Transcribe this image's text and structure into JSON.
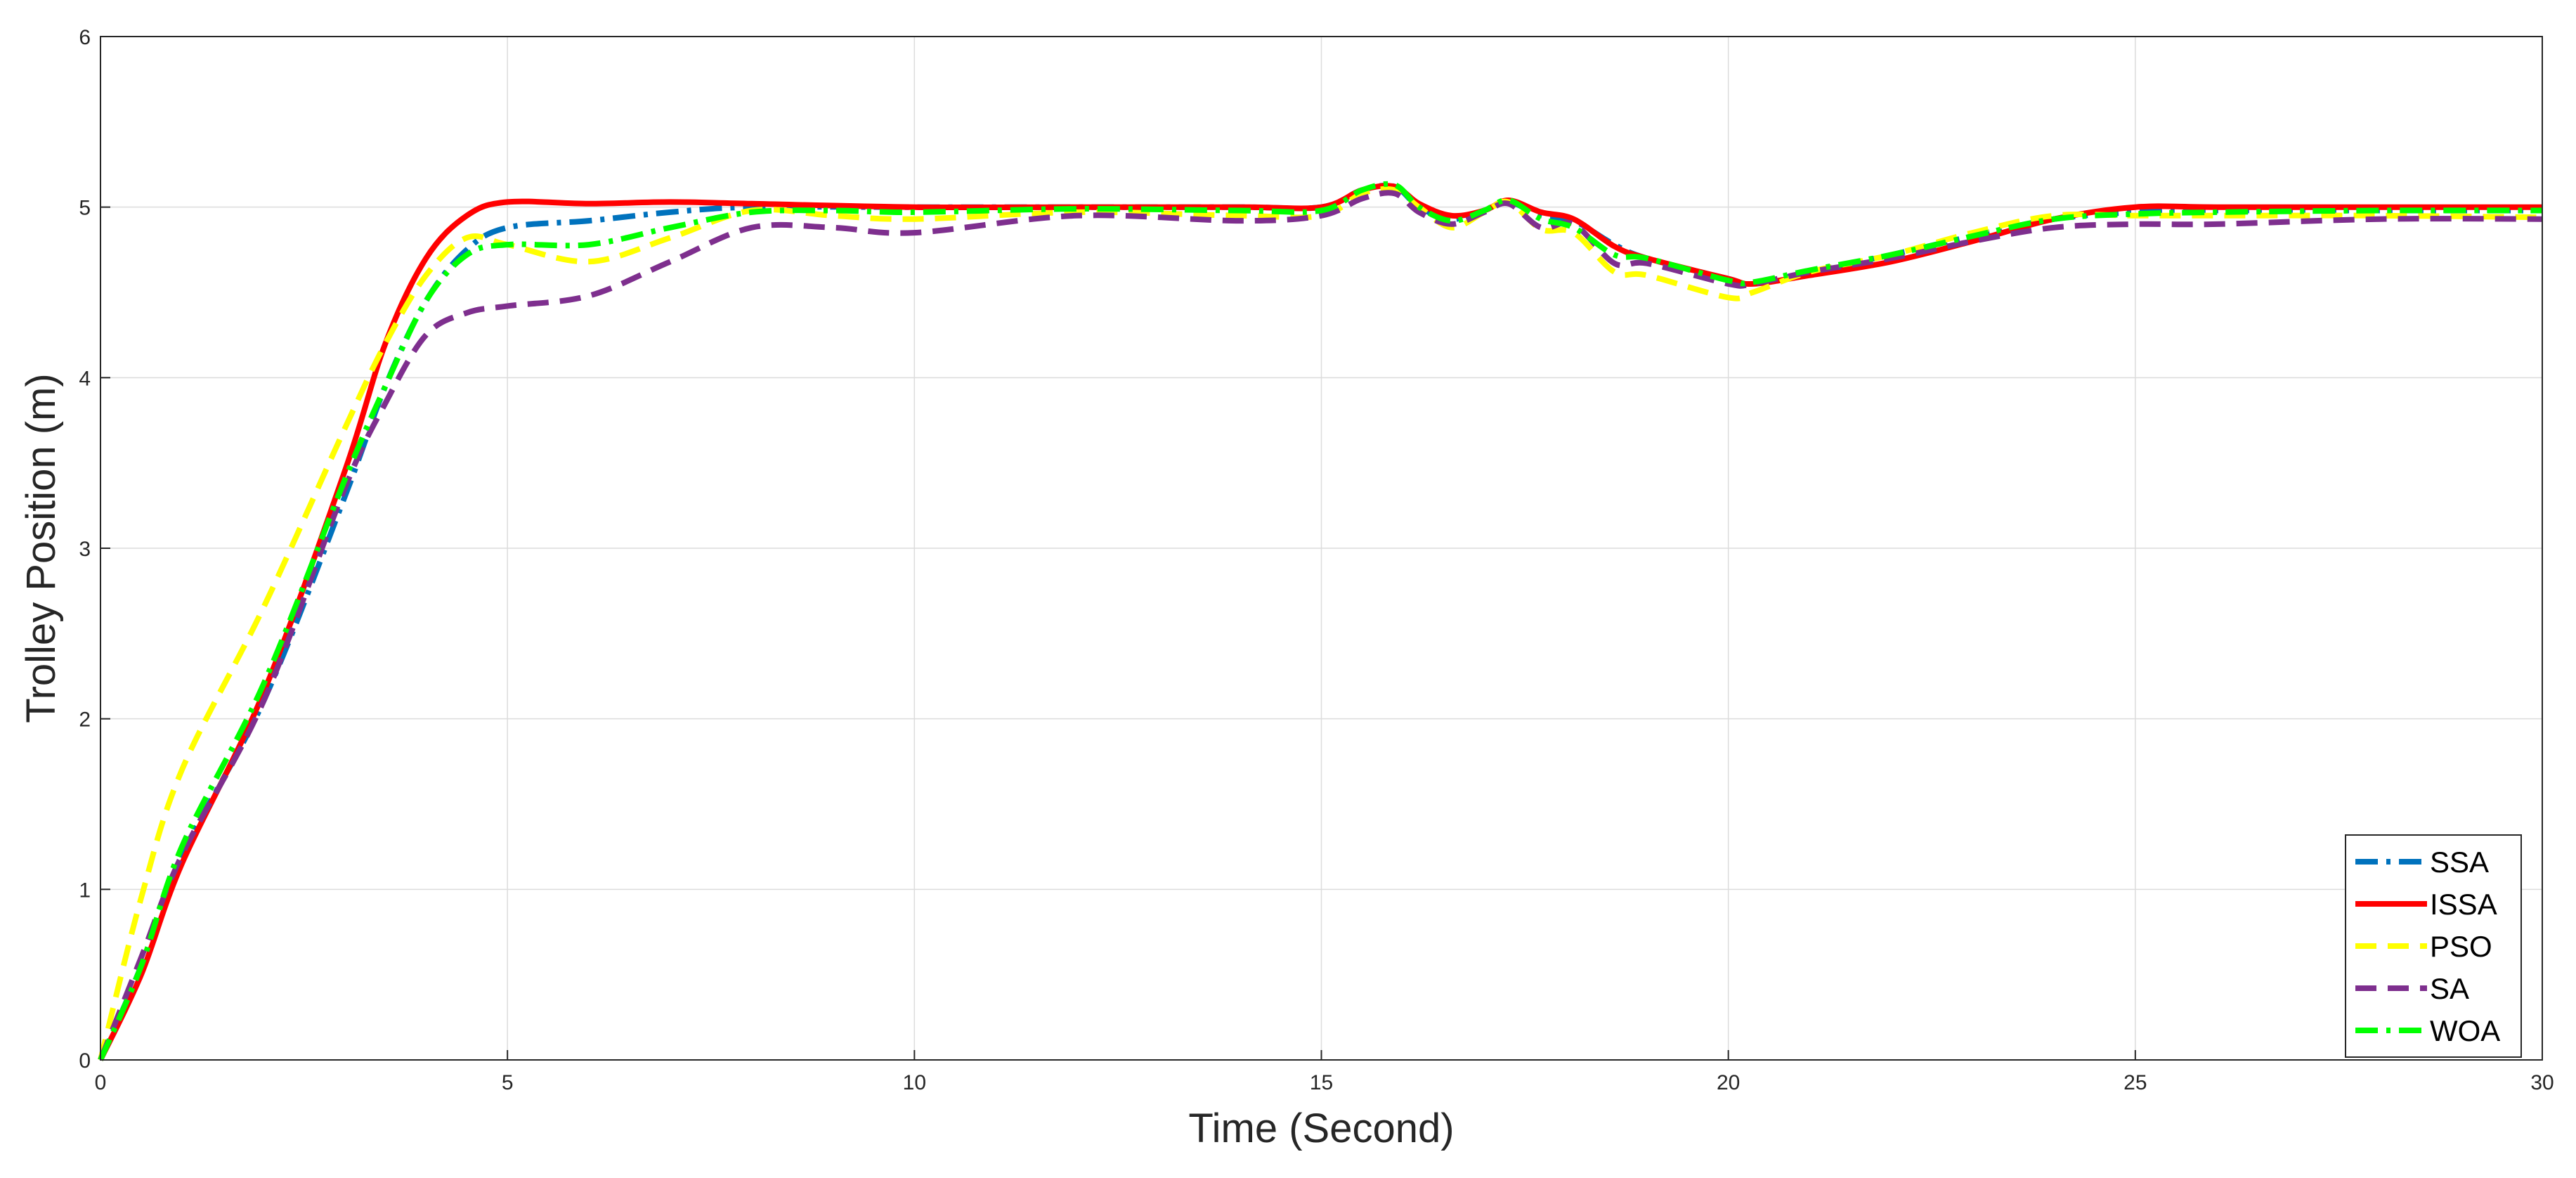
{
  "chart_data": {
    "type": "line",
    "xlabel": "Time (Second)",
    "ylabel": "Trolley Position (m)",
    "xlim": [
      0,
      30
    ],
    "ylim": [
      0,
      6
    ],
    "xticks": [
      0,
      5,
      10,
      15,
      20,
      25,
      30
    ],
    "yticks": [
      0,
      1,
      2,
      3,
      4,
      5,
      6
    ],
    "grid": true,
    "legend_position": "bottom-right",
    "series": [
      {
        "name": "SSA",
        "color": "#0072BD",
        "dash": "dash-dot",
        "points": [
          [
            0,
            0
          ],
          [
            0.5,
            0.55
          ],
          [
            1,
            1.2
          ],
          [
            2,
            2.1
          ],
          [
            3,
            3.3
          ],
          [
            3.5,
            3.95
          ],
          [
            4,
            4.45
          ],
          [
            4.5,
            4.75
          ],
          [
            5,
            4.88
          ],
          [
            6,
            4.92
          ],
          [
            7,
            4.97
          ],
          [
            8,
            5.0
          ],
          [
            10,
            5.0
          ],
          [
            12,
            5.0
          ],
          [
            14,
            5.0
          ],
          [
            15,
            5.0
          ],
          [
            15.5,
            5.1
          ],
          [
            15.9,
            5.12
          ],
          [
            16.2,
            5.0
          ],
          [
            16.6,
            4.93
          ],
          [
            17,
            4.98
          ],
          [
            17.3,
            5.03
          ],
          [
            17.7,
            4.95
          ],
          [
            18.1,
            4.92
          ],
          [
            18.6,
            4.78
          ],
          [
            19,
            4.7
          ],
          [
            20,
            4.58
          ],
          [
            20.3,
            4.55
          ],
          [
            21,
            4.62
          ],
          [
            22,
            4.72
          ],
          [
            23,
            4.83
          ],
          [
            24,
            4.93
          ],
          [
            25,
            4.97
          ],
          [
            26,
            4.98
          ],
          [
            28,
            4.98
          ],
          [
            30,
            4.98
          ]
        ]
      },
      {
        "name": "ISSA",
        "color": "#FF0000",
        "dash": "solid",
        "points": [
          [
            0,
            0
          ],
          [
            0.5,
            0.5
          ],
          [
            1,
            1.15
          ],
          [
            2,
            2.15
          ],
          [
            3,
            3.45
          ],
          [
            3.5,
            4.2
          ],
          [
            4,
            4.7
          ],
          [
            4.5,
            4.95
          ],
          [
            5,
            5.03
          ],
          [
            6,
            5.02
          ],
          [
            7,
            5.03
          ],
          [
            8,
            5.02
          ],
          [
            10,
            5.0
          ],
          [
            12,
            5.0
          ],
          [
            14,
            5.0
          ],
          [
            15,
            5.0
          ],
          [
            15.5,
            5.1
          ],
          [
            15.9,
            5.12
          ],
          [
            16.2,
            5.02
          ],
          [
            16.6,
            4.95
          ],
          [
            17,
            4.98
          ],
          [
            17.3,
            5.04
          ],
          [
            17.7,
            4.97
          ],
          [
            18.1,
            4.93
          ],
          [
            18.6,
            4.77
          ],
          [
            19,
            4.7
          ],
          [
            20,
            4.58
          ],
          [
            20.3,
            4.55
          ],
          [
            21,
            4.6
          ],
          [
            22,
            4.68
          ],
          [
            23,
            4.8
          ],
          [
            24,
            4.93
          ],
          [
            25,
            5.0
          ],
          [
            26,
            5.0
          ],
          [
            28,
            5.0
          ],
          [
            30,
            5.0
          ]
        ]
      },
      {
        "name": "PSO",
        "color": "#FFFF00",
        "dash": "dashed",
        "points": [
          [
            0,
            0
          ],
          [
            0.5,
            0.95
          ],
          [
            1,
            1.7
          ],
          [
            2,
            2.65
          ],
          [
            3,
            3.7
          ],
          [
            3.5,
            4.2
          ],
          [
            4,
            4.6
          ],
          [
            4.5,
            4.82
          ],
          [
            5,
            4.78
          ],
          [
            6,
            4.68
          ],
          [
            7,
            4.82
          ],
          [
            8,
            4.98
          ],
          [
            9,
            4.95
          ],
          [
            10,
            4.93
          ],
          [
            12,
            4.97
          ],
          [
            14,
            4.95
          ],
          [
            15,
            4.95
          ],
          [
            15.5,
            5.08
          ],
          [
            15.9,
            5.1
          ],
          [
            16.2,
            5.0
          ],
          [
            16.6,
            4.88
          ],
          [
            17,
            4.97
          ],
          [
            17.3,
            5.03
          ],
          [
            17.7,
            4.87
          ],
          [
            18.1,
            4.85
          ],
          [
            18.6,
            4.62
          ],
          [
            19,
            4.6
          ],
          [
            20,
            4.47
          ],
          [
            20.3,
            4.5
          ],
          [
            21,
            4.62
          ],
          [
            22,
            4.72
          ],
          [
            23,
            4.85
          ],
          [
            24,
            4.95
          ],
          [
            25,
            4.95
          ],
          [
            26,
            4.95
          ],
          [
            28,
            4.95
          ],
          [
            30,
            4.94
          ]
        ]
      },
      {
        "name": "SA",
        "color": "#7E2F8E",
        "dash": "dashed",
        "points": [
          [
            0,
            0
          ],
          [
            0.5,
            0.6
          ],
          [
            1,
            1.2
          ],
          [
            2,
            2.1
          ],
          [
            3,
            3.35
          ],
          [
            3.5,
            3.85
          ],
          [
            4,
            4.25
          ],
          [
            4.5,
            4.38
          ],
          [
            5,
            4.42
          ],
          [
            6,
            4.48
          ],
          [
            7,
            4.68
          ],
          [
            8,
            4.88
          ],
          [
            9,
            4.88
          ],
          [
            10,
            4.85
          ],
          [
            12,
            4.95
          ],
          [
            14,
            4.92
          ],
          [
            15,
            4.95
          ],
          [
            15.5,
            5.05
          ],
          [
            15.9,
            5.08
          ],
          [
            16.2,
            4.97
          ],
          [
            16.6,
            4.9
          ],
          [
            17,
            4.97
          ],
          [
            17.3,
            5.02
          ],
          [
            17.7,
            4.88
          ],
          [
            18.1,
            4.9
          ],
          [
            18.6,
            4.67
          ],
          [
            19,
            4.67
          ],
          [
            20,
            4.55
          ],
          [
            20.3,
            4.55
          ],
          [
            21,
            4.62
          ],
          [
            22,
            4.7
          ],
          [
            23,
            4.8
          ],
          [
            24,
            4.88
          ],
          [
            25,
            4.9
          ],
          [
            26,
            4.9
          ],
          [
            28,
            4.93
          ],
          [
            30,
            4.93
          ]
        ]
      },
      {
        "name": "WOA",
        "color": "#00FF00",
        "dash": "dash-dot",
        "points": [
          [
            0,
            0
          ],
          [
            0.5,
            0.55
          ],
          [
            1,
            1.25
          ],
          [
            2,
            2.2
          ],
          [
            3,
            3.4
          ],
          [
            3.5,
            3.95
          ],
          [
            4,
            4.45
          ],
          [
            4.5,
            4.72
          ],
          [
            5,
            4.78
          ],
          [
            6,
            4.78
          ],
          [
            7,
            4.88
          ],
          [
            8,
            4.97
          ],
          [
            9,
            4.98
          ],
          [
            10,
            4.97
          ],
          [
            12,
            4.99
          ],
          [
            14,
            4.98
          ],
          [
            15,
            4.98
          ],
          [
            15.5,
            5.1
          ],
          [
            15.9,
            5.13
          ],
          [
            16.2,
            5.0
          ],
          [
            16.6,
            4.92
          ],
          [
            17,
            4.98
          ],
          [
            17.3,
            5.04
          ],
          [
            17.7,
            4.93
          ],
          [
            18.1,
            4.88
          ],
          [
            18.6,
            4.72
          ],
          [
            19,
            4.7
          ],
          [
            20,
            4.57
          ],
          [
            20.3,
            4.56
          ],
          [
            21,
            4.63
          ],
          [
            22,
            4.72
          ],
          [
            23,
            4.83
          ],
          [
            24,
            4.93
          ],
          [
            25,
            4.96
          ],
          [
            26,
            4.97
          ],
          [
            28,
            4.98
          ],
          [
            30,
            4.98
          ]
        ]
      }
    ]
  }
}
